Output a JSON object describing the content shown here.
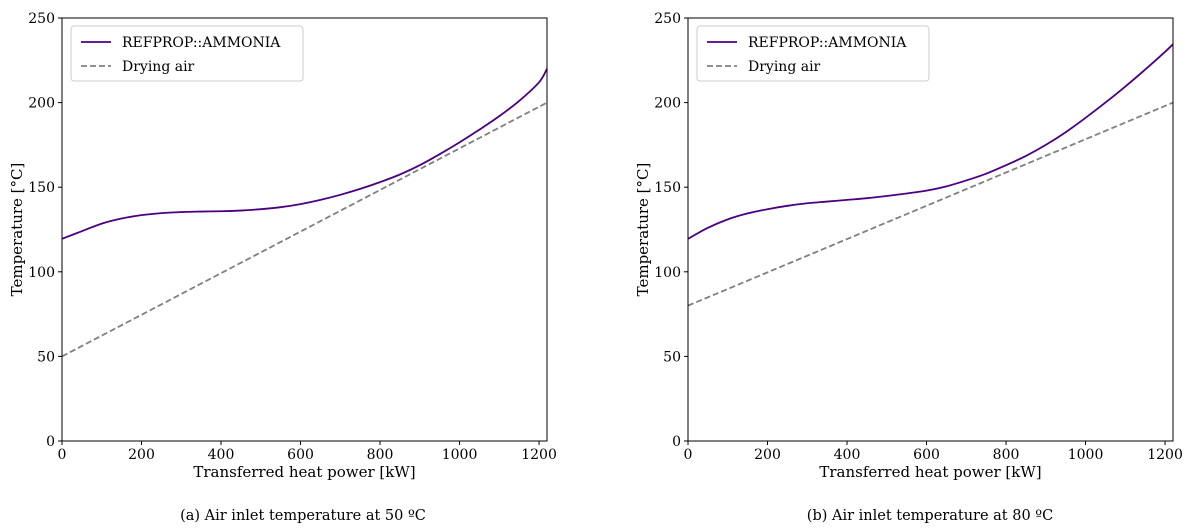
{
  "figure": {
    "subcaptions": [
      "(a) Air inlet temperature at 50 ºC",
      "(b) Air inlet temperature at 80 ºC"
    ]
  },
  "colors": {
    "refprop": "#4b0082",
    "drying_air": "#808080",
    "axis": "#000000"
  },
  "chart_data": [
    {
      "type": "line",
      "xlabel": "Transferred heat power [kW]",
      "ylabel": "Temperature [°C]",
      "xlim": [
        0,
        1220
      ],
      "ylim": [
        0,
        250
      ],
      "xticks": [
        0,
        200,
        400,
        600,
        800,
        1000,
        1200
      ],
      "yticks": [
        0,
        50,
        100,
        150,
        200,
        250
      ],
      "grid": false,
      "legend": "upper left",
      "series": [
        {
          "name": "REFPROP::AMMONIA",
          "style": "solid",
          "x": [
            0,
            50,
            100,
            150,
            200,
            250,
            300,
            350,
            400,
            450,
            500,
            550,
            600,
            650,
            700,
            750,
            800,
            850,
            900,
            950,
            1000,
            1050,
            1100,
            1150,
            1200,
            1220
          ],
          "y": [
            119.5,
            124,
            128.5,
            131.5,
            133.5,
            134.7,
            135.3,
            135.6,
            135.8,
            136.2,
            137,
            138.2,
            140,
            142.5,
            145.5,
            149,
            153,
            157.5,
            163,
            169.5,
            176.5,
            184,
            192,
            201,
            212,
            220
          ]
        },
        {
          "name": "Drying air",
          "style": "dashed",
          "x": [
            0,
            1220
          ],
          "y": [
            50,
            200
          ]
        }
      ]
    },
    {
      "type": "line",
      "xlabel": "Transferred heat power [kW]",
      "ylabel": "Temperature [°C]",
      "xlim": [
        0,
        1220
      ],
      "ylim": [
        0,
        250
      ],
      "xticks": [
        0,
        200,
        400,
        600,
        800,
        1000,
        1200
      ],
      "yticks": [
        0,
        50,
        100,
        150,
        200,
        250
      ],
      "grid": false,
      "legend": "upper left",
      "series": [
        {
          "name": "REFPROP::AMMONIA",
          "style": "solid",
          "x": [
            0,
            50,
            100,
            150,
            200,
            250,
            300,
            350,
            400,
            450,
            500,
            550,
            600,
            650,
            700,
            750,
            800,
            850,
            900,
            950,
            1000,
            1050,
            1100,
            1150,
            1200,
            1220
          ],
          "y": [
            119.5,
            126,
            131,
            134.5,
            137,
            139,
            140.5,
            141.5,
            142.5,
            143.5,
            144.8,
            146.3,
            148,
            150.5,
            154,
            158,
            163,
            168.5,
            175,
            182.5,
            191,
            200,
            209.5,
            219.5,
            230,
            234.5
          ]
        },
        {
          "name": "Drying air",
          "style": "dashed",
          "x": [
            0,
            1220
          ],
          "y": [
            80,
            200
          ]
        }
      ]
    }
  ]
}
